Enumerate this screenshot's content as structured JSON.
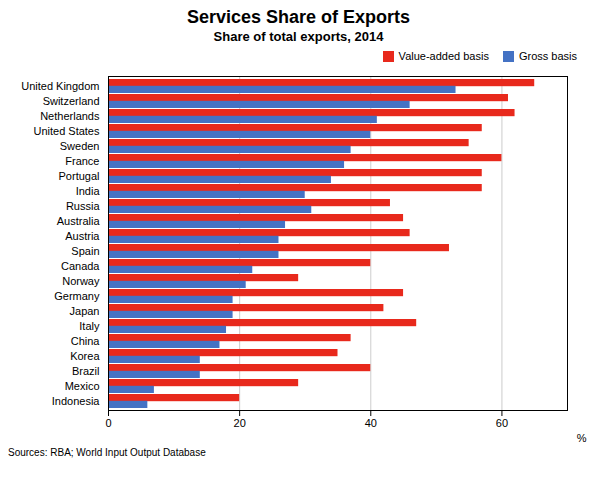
{
  "chart_data": {
    "type": "bar",
    "orientation": "horizontal",
    "title": "Services Share of Exports",
    "subtitle": "Share of total exports, 2014",
    "xlabel": "%",
    "source": "Sources:  RBA; World Input Output Database",
    "categories": [
      "United Kingdom",
      "Switzerland",
      "Netherlands",
      "United States",
      "Sweden",
      "France",
      "Portugal",
      "India",
      "Russia",
      "Australia",
      "Austria",
      "Spain",
      "Canada",
      "Norway",
      "Germany",
      "Japan",
      "Italy",
      "China",
      "Korea",
      "Brazil",
      "Mexico",
      "Indonesia"
    ],
    "series": [
      {
        "name": "Value-added basis",
        "color": "#e8291c",
        "values": [
          65,
          61,
          62,
          57,
          55,
          60,
          57,
          57,
          43,
          45,
          46,
          52,
          40,
          29,
          45,
          42,
          47,
          37,
          35,
          40,
          29,
          20
        ]
      },
      {
        "name": "Gross basis",
        "color": "#4472c4",
        "values": [
          53,
          46,
          41,
          40,
          37,
          36,
          34,
          30,
          31,
          27,
          26,
          26,
          22,
          21,
          19,
          19,
          18,
          17,
          14,
          14,
          7,
          6
        ]
      }
    ],
    "xlim": [
      0,
      70
    ],
    "xticks": [
      0,
      20,
      40,
      60
    ],
    "grid": true,
    "legend": "right"
  }
}
